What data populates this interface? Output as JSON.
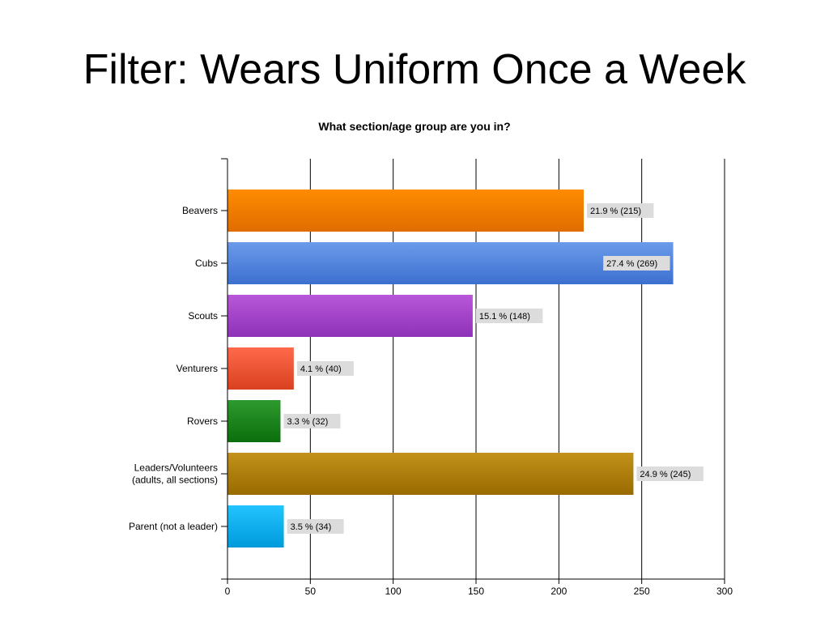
{
  "slide_title": "Filter: Wears Uniform Once a Week",
  "chart_data": {
    "type": "bar",
    "orientation": "horizontal",
    "title": "What section/age group are you in?",
    "categories": [
      [
        "Beavers"
      ],
      [
        "Cubs"
      ],
      [
        "Scouts"
      ],
      [
        "Venturers"
      ],
      [
        "Rovers"
      ],
      [
        "Leaders/Volunteers",
        "(adults, all sections)"
      ],
      [
        "Parent (not a leader)"
      ]
    ],
    "values": [
      215,
      269,
      148,
      40,
      32,
      245,
      34
    ],
    "data_labels": [
      "21.9 % (215)",
      "27.4 % (269)",
      "15.1 % (148)",
      "4.1 % (40)",
      "3.3 % (32)",
      "24.9 % (245)",
      "3.5 % (34)"
    ],
    "bar_colors": [
      [
        "#FF8C00",
        "#E06C00"
      ],
      [
        "#6A9BEA",
        "#3D6FD0"
      ],
      [
        "#B857D9",
        "#8E32B8"
      ],
      [
        "#FF6A4A",
        "#D9401F"
      ],
      [
        "#2E9A2E",
        "#0B6E0B"
      ],
      [
        "#C2921A",
        "#996A00"
      ],
      [
        "#22C4FF",
        "#009ADB"
      ]
    ],
    "xlim": [
      0,
      300
    ],
    "xticks": [
      0,
      50,
      100,
      150,
      200,
      250,
      300
    ],
    "xlabel": "",
    "ylabel": "",
    "grid": true,
    "legend": "none"
  }
}
